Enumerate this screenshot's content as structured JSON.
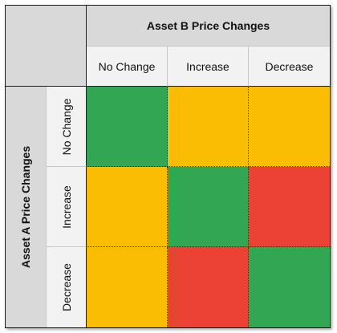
{
  "top_header": "Asset B Price Changes",
  "left_header": "Asset A Price Changes",
  "columns": [
    "No Change",
    "Increase",
    "Decrease"
  ],
  "rows": [
    "No Change",
    "Increase",
    "Decrease"
  ],
  "colors": {
    "green": "#33a654",
    "yellow": "#fbbc04",
    "red": "#ea4335",
    "header_fill": "#d9d9d9",
    "subheader_fill": "#f2f2f2"
  },
  "matrix_colors": [
    [
      "green",
      "yellow",
      "yellow"
    ],
    [
      "yellow",
      "green",
      "red"
    ],
    [
      "yellow",
      "red",
      "green"
    ]
  ]
}
